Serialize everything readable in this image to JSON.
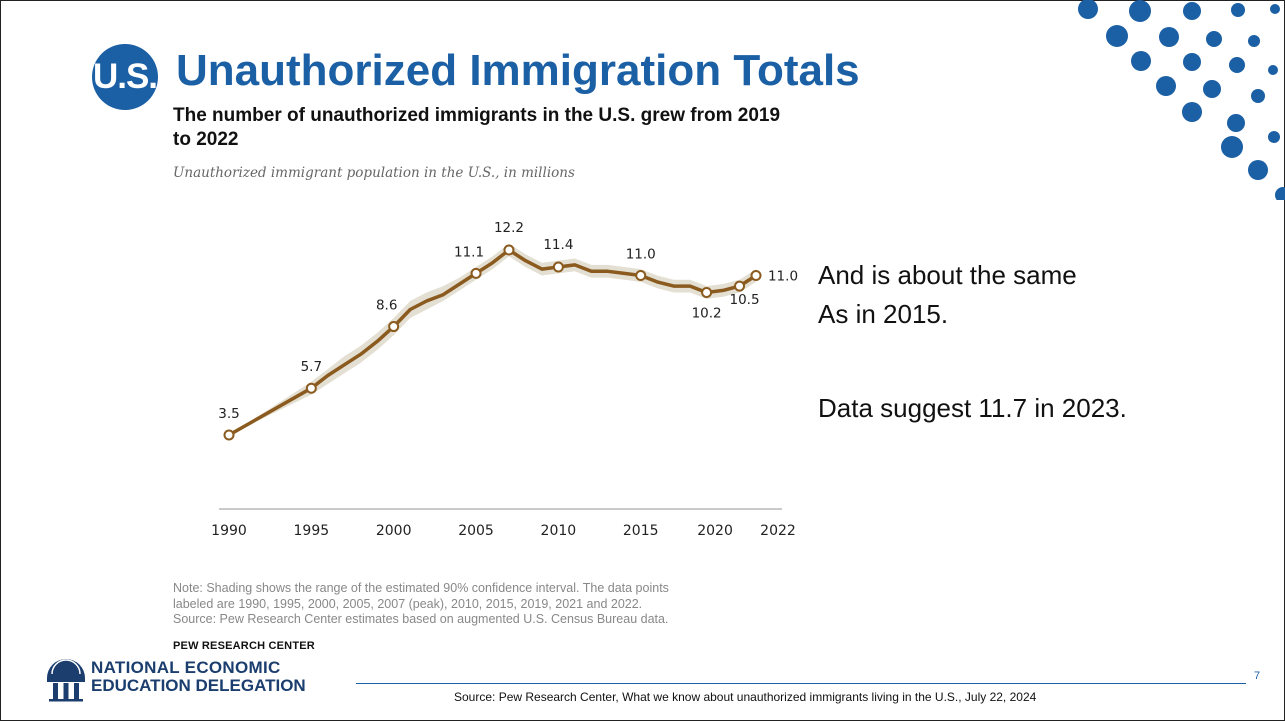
{
  "slide": {
    "badge": "U.S.",
    "title": "Unauthorized Immigration Totals",
    "annotation_line1": "And is about the same",
    "annotation_line2": "As in 2015.",
    "annotation_line3": "Data suggest 11.7 in 2023.",
    "page_number": "7",
    "source": "Source: Pew Research Center, What we know about unauthorized immigrants living in the U.S., July 22, 2024"
  },
  "logo": {
    "line1": "NATIONAL ECONOMIC",
    "line2": "EDUCATION DELEGATION"
  },
  "chart_data": {
    "type": "line",
    "title": "The number of unauthorized immigrants in the U.S. grew from 2019 to 2022",
    "subtitle": "Unauthorized immigrant population in the U.S., in millions",
    "xlabel": "",
    "ylabel": "",
    "x_ticks": [
      "1990",
      "1995",
      "2000",
      "2005",
      "2010",
      "2015",
      "2020",
      "2022"
    ],
    "x_tick_values": [
      1990,
      1995,
      2000,
      2005,
      2010,
      2015,
      2020,
      2022
    ],
    "xlim": [
      1990,
      2022
    ],
    "ylim": [
      0,
      13
    ],
    "line_color": "#8a5a1e",
    "band_color": "#e3dfd2",
    "series": [
      {
        "x": [
          1990,
          1995,
          1996,
          1997,
          1998,
          1999,
          2000,
          2001,
          2002,
          2003,
          2004,
          2005,
          2006,
          2007,
          2008,
          2009,
          2010,
          2011,
          2012,
          2013,
          2014,
          2015,
          2016,
          2017,
          2018,
          2019,
          2020,
          2021,
          2022
        ],
        "values": [
          3.5,
          5.7,
          6.3,
          6.8,
          7.3,
          7.9,
          8.6,
          9.4,
          9.8,
          10.1,
          10.6,
          11.1,
          11.6,
          12.2,
          11.7,
          11.3,
          11.4,
          11.5,
          11.2,
          11.2,
          11.1,
          11.0,
          10.7,
          10.5,
          10.5,
          10.2,
          10.3,
          10.5,
          11.0
        ],
        "lower": [
          3.5,
          5.4,
          5.9,
          6.4,
          6.9,
          7.5,
          8.2,
          9.0,
          9.4,
          9.8,
          10.3,
          10.8,
          11.3,
          11.9,
          11.4,
          11.0,
          11.1,
          11.2,
          10.9,
          10.9,
          10.8,
          10.7,
          10.4,
          10.2,
          10.2,
          9.9,
          10.0,
          10.2,
          10.7
        ],
        "upper": [
          3.5,
          6.0,
          6.6,
          7.2,
          7.7,
          8.3,
          9.0,
          9.8,
          10.2,
          10.5,
          10.9,
          11.4,
          11.9,
          12.5,
          12.0,
          11.6,
          11.7,
          11.8,
          11.5,
          11.5,
          11.4,
          11.3,
          11.0,
          10.8,
          10.8,
          10.5,
          10.6,
          10.8,
          11.3
        ]
      }
    ],
    "labeled_points": [
      {
        "x": 1990,
        "value": 3.5,
        "label": "3.5"
      },
      {
        "x": 1995,
        "value": 5.7,
        "label": "5.7"
      },
      {
        "x": 2000,
        "value": 8.6,
        "label": "8.6"
      },
      {
        "x": 2005,
        "value": 11.1,
        "label": "11.1"
      },
      {
        "x": 2007,
        "value": 12.2,
        "label": "12.2"
      },
      {
        "x": 2010,
        "value": 11.4,
        "label": "11.4"
      },
      {
        "x": 2015,
        "value": 11.0,
        "label": "11.0"
      },
      {
        "x": 2019,
        "value": 10.2,
        "label": "10.2"
      },
      {
        "x": 2021,
        "value": 10.5,
        "label": "10.5"
      },
      {
        "x": 2022,
        "value": 11.0,
        "label": "11.0"
      }
    ],
    "note_lines": [
      "Note: Shading shows the range of the estimated 90% confidence interval. The data points",
      "labeled are 1990, 1995, 2000, 2005, 2007 (peak), 2010, 2015, 2019, 2021 and 2022.",
      "Source: Pew Research Center estimates based on augmented U.S. Census Bureau data."
    ],
    "credit": "PEW RESEARCH CENTER"
  },
  "colors": {
    "brand_blue": "#1b5fa4",
    "navy": "#1b3e6e"
  },
  "icons": {
    "logo": "ionic-column-icon",
    "decoration": "dot-pattern"
  }
}
